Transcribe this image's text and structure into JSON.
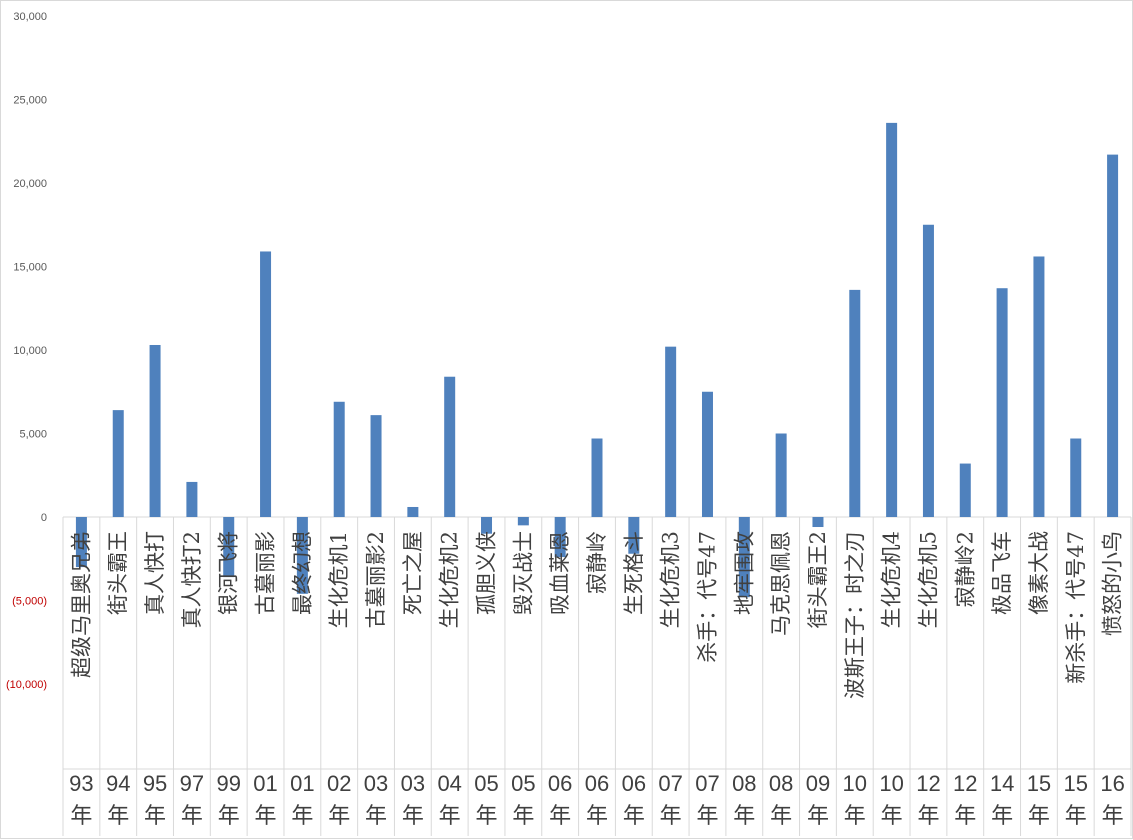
{
  "chart_data": {
    "type": "bar",
    "title": "",
    "xlabel": "",
    "ylabel": "",
    "ylim": [
      -10000,
      30000
    ],
    "yticks": [
      30000,
      25000,
      20000,
      15000,
      10000,
      5000,
      0,
      -5000,
      -10000
    ],
    "ytick_labels": [
      "30,000",
      "25,000",
      "20,000",
      "15,000",
      "10,000",
      "5,000",
      "0",
      "(5,000)",
      "(10,000)"
    ],
    "grid": false,
    "legend": "none",
    "categories": [
      {
        "year": "93年",
        "title": "超级马里奥兄弟"
      },
      {
        "year": "94年",
        "title": "街头霸王"
      },
      {
        "year": "95年",
        "title": "真人快打"
      },
      {
        "year": "97年",
        "title": "真人快打2"
      },
      {
        "year": "99年",
        "title": "银河飞将"
      },
      {
        "year": "01年",
        "title": "古墓丽影"
      },
      {
        "year": "01年",
        "title": "最终幻想"
      },
      {
        "year": "02年",
        "title": "生化危机1"
      },
      {
        "year": "03年",
        "title": "古墓丽影2"
      },
      {
        "year": "03年",
        "title": "死亡之屋"
      },
      {
        "year": "04年",
        "title": "生化危机2"
      },
      {
        "year": "05年",
        "title": "孤胆义侠"
      },
      {
        "year": "05年",
        "title": "毁灭战士"
      },
      {
        "year": "06年",
        "title": "吸血莱恩"
      },
      {
        "year": "06年",
        "title": "寂静岭"
      },
      {
        "year": "06年",
        "title": "生死格斗"
      },
      {
        "year": "07年",
        "title": "生化危机3"
      },
      {
        "year": "07年",
        "title": "杀手：代号47"
      },
      {
        "year": "08年",
        "title": "地牢围攻"
      },
      {
        "year": "08年",
        "title": "马克思佩恩"
      },
      {
        "year": "09年",
        "title": "街头霸王2"
      },
      {
        "year": "10年",
        "title": "波斯王子：时之刃"
      },
      {
        "year": "10年",
        "title": "生化危机4"
      },
      {
        "year": "12年",
        "title": "生化危机5"
      },
      {
        "year": "12年",
        "title": "寂静岭2"
      },
      {
        "year": "14年",
        "title": "极品飞车"
      },
      {
        "year": "15年",
        "title": "像素大战"
      },
      {
        "year": "15年",
        "title": "新杀手：代号47"
      },
      {
        "year": "16年",
        "title": "愤怒的小鸟"
      }
    ],
    "values": [
      -3000,
      6400,
      10300,
      2100,
      -3600,
      15900,
      -4600,
      6900,
      6100,
      600,
      8400,
      -1000,
      -500,
      -2400,
      4700,
      -2200,
      10200,
      7500,
      -4800,
      5000,
      -600,
      13600,
      23600,
      17500,
      3200,
      13700,
      15600,
      4700,
      21700
    ],
    "bar_color": "#4f81bd",
    "negative_label_color": "#c00000"
  }
}
